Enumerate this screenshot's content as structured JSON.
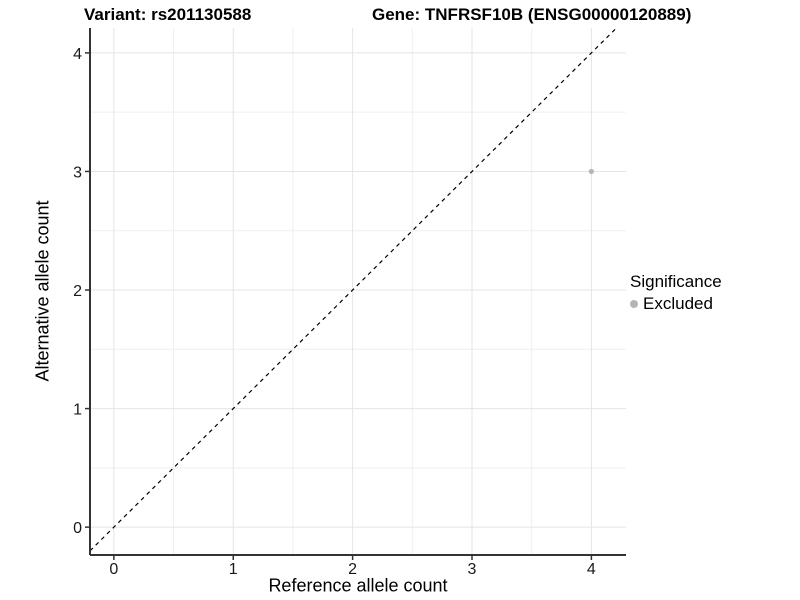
{
  "chart_data": {
    "type": "scatter",
    "title_left": "Variant: rs201130588",
    "title_right": "Gene: TNFRSF10B (ENSG00000120889)",
    "xlabel": "Reference allele count",
    "ylabel": "Alternative allele count",
    "xlim": [
      -0.2,
      4.29
    ],
    "ylim": [
      -0.235,
      4.21
    ],
    "x_ticks": [
      0,
      1,
      2,
      3,
      4
    ],
    "y_ticks": [
      0,
      1,
      2,
      3,
      4
    ],
    "x_minor_ticks": [
      0.5,
      1.5,
      2.5,
      3.5
    ],
    "y_minor_ticks": [
      0.5,
      1.5,
      2.5,
      3.5
    ],
    "grid": true,
    "series": [
      {
        "name": "Excluded",
        "color": "#b5b5b5",
        "points": [
          {
            "x": 4,
            "y": 3
          }
        ]
      }
    ],
    "reference_line": {
      "type": "identity",
      "style": "dashed",
      "color": "#000000"
    },
    "legend": {
      "title": "Significance",
      "position": "right",
      "items": [
        {
          "label": "Excluded",
          "color": "#b5b5b5"
        }
      ]
    },
    "colors": {
      "background": "#ffffff",
      "grid_major": "#e4e4e4",
      "grid_minor": "#efefef",
      "axis_line": "#333333",
      "tick_text": "#1a1a1a",
      "point": "#b5b5b5"
    }
  }
}
